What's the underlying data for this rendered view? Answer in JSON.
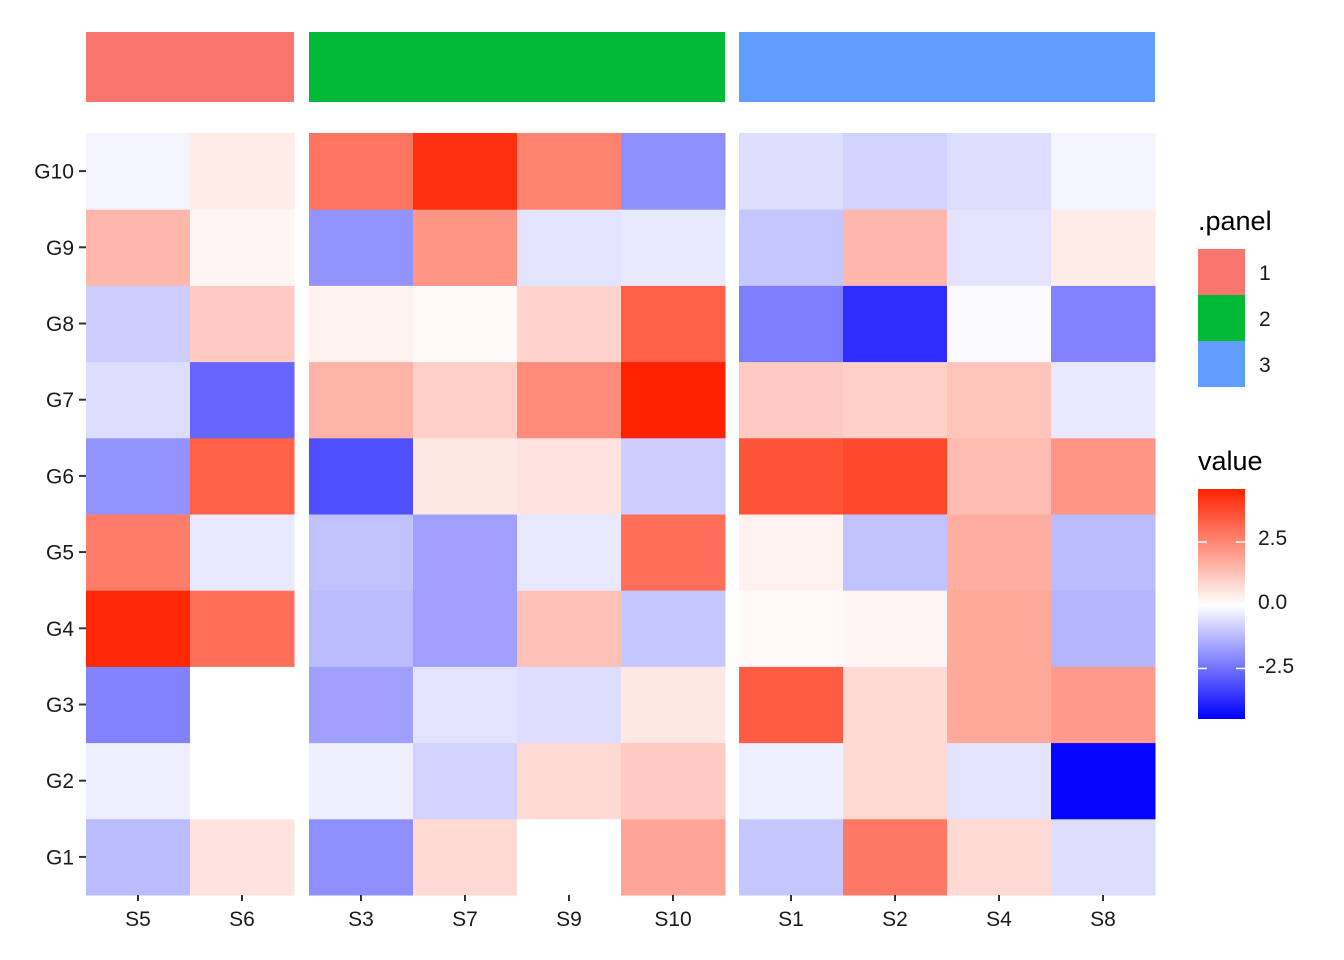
{
  "chart_data": {
    "type": "heatmap",
    "rows": [
      "G1",
      "G2",
      "G3",
      "G4",
      "G5",
      "G6",
      "G7",
      "G8",
      "G9",
      "G10"
    ],
    "panels": [
      {
        "name": "1",
        "color": "#F8766D",
        "columns": [
          "S5",
          "S6"
        ]
      },
      {
        "name": "2",
        "color": "#00BA38",
        "columns": [
          "S3",
          "S7",
          "S9",
          "S10"
        ]
      },
      {
        "name": "3",
        "color": "#619CFF",
        "columns": [
          "S1",
          "S2",
          "S4",
          "S8"
        ]
      }
    ],
    "values": {
      "G10": {
        "S5": -0.2,
        "S6": 0.4,
        "S3": 2.9,
        "S7": 4.3,
        "S9": 2.6,
        "S10": -2.0,
        "S1": -0.6,
        "S2": -0.8,
        "S4": -0.6,
        "S8": -0.2
      },
      "G9": {
        "S5": 1.5,
        "S6": 0.2,
        "S3": -1.9,
        "S7": 2.2,
        "S9": -0.5,
        "S10": -0.4,
        "S1": -1.0,
        "S2": 1.5,
        "S4": -0.5,
        "S8": 0.4
      },
      "G8": {
        "S5": -0.9,
        "S6": 1.1,
        "S3": 0.3,
        "S7": 0.1,
        "S9": 0.9,
        "S10": 3.3,
        "S1": -2.3,
        "S2": -3.7,
        "S4": -0.1,
        "S8": -2.2
      },
      "G7": {
        "S5": -0.6,
        "S6": -2.7,
        "S3": 1.6,
        "S7": 1.0,
        "S9": 2.4,
        "S10": 4.6,
        "S1": 1.1,
        "S2": 1.0,
        "S4": 1.2,
        "S8": -0.4
      },
      "G6": {
        "S5": -1.9,
        "S6": 3.3,
        "S3": -3.1,
        "S7": 0.5,
        "S9": 0.6,
        "S10": -0.9,
        "S1": 3.6,
        "S2": 3.8,
        "S4": 1.4,
        "S8": 2.2
      },
      "G5": {
        "S5": 2.7,
        "S6": -0.4,
        "S3": -1.1,
        "S7": -1.7,
        "S9": -0.4,
        "S10": 3.0,
        "S1": 0.3,
        "S2": -1.1,
        "S4": 1.7,
        "S8": -1.2
      },
      "G4": {
        "S5": 4.5,
        "S6": 3.0,
        "S3": -1.2,
        "S7": -1.7,
        "S9": 1.3,
        "S10": -1.0,
        "S1": 0.1,
        "S2": 0.2,
        "S4": 1.8,
        "S8": -1.3
      },
      "G3": {
        "S5": -2.2,
        "S6": 0.0,
        "S3": -1.7,
        "S7": -0.5,
        "S9": -0.6,
        "S10": 0.5,
        "S1": 3.4,
        "S2": 0.8,
        "S4": 1.8,
        "S8": 2.1
      },
      "G2": {
        "S5": -0.3,
        "S6": 0.0,
        "S3": -0.3,
        "S7": -0.8,
        "S9": 0.8,
        "S10": 1.1,
        "S1": -0.3,
        "S2": 0.8,
        "S4": -0.5,
        "S8": -4.4
      },
      "G1": {
        "S5": -1.2,
        "S6": 0.6,
        "S3": -2.0,
        "S7": 0.8,
        "S9": 0.0,
        "S10": 1.9,
        "S1": -1.0,
        "S2": 2.8,
        "S4": 0.8,
        "S8": -0.6
      }
    },
    "legends": {
      "panel": {
        "title": ".panel",
        "items": [
          {
            "label": "1",
            "color": "#F8766D"
          },
          {
            "label": "2",
            "color": "#00BA38"
          },
          {
            "label": "3",
            "color": "#619CFF"
          }
        ]
      },
      "value": {
        "title": "value",
        "breaks": [
          2.5,
          0.0,
          -2.5
        ],
        "break_labels": [
          "2.5",
          "0.0",
          "-2.5"
        ],
        "limits": [
          -4.5,
          4.6
        ],
        "low_color": "#0000FF",
        "mid_color": "#FFFFFF",
        "high_color": "#FF2200"
      }
    },
    "legend_position": "right",
    "grid": false
  }
}
